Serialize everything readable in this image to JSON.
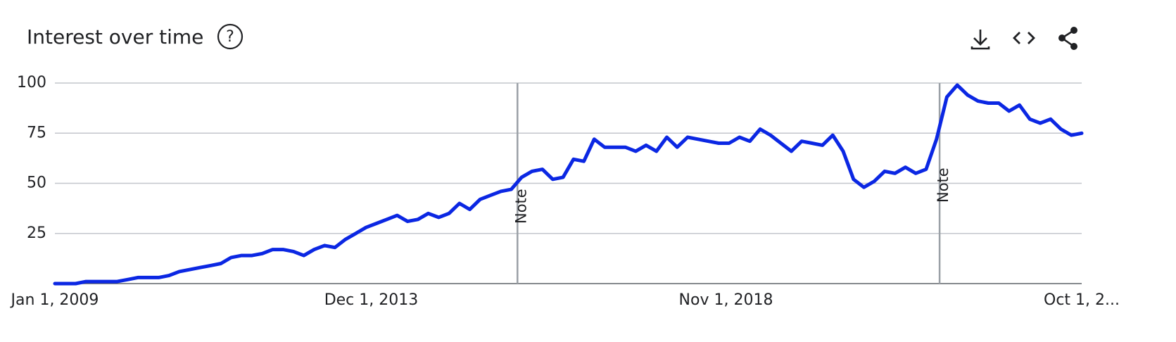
{
  "chart_data": {
    "type": "line",
    "title": "Interest over time",
    "help_icon": "?",
    "color": "#0b27e3",
    "values": [
      0,
      0,
      0,
      1,
      1,
      1,
      1,
      2,
      3,
      3,
      3,
      4,
      6,
      7,
      8,
      9,
      10,
      13,
      14,
      14,
      15,
      17,
      17,
      16,
      14,
      17,
      19,
      18,
      22,
      25,
      28,
      30,
      32,
      34,
      31,
      32,
      35,
      33,
      35,
      40,
      37,
      42,
      44,
      46,
      47,
      53,
      56,
      57,
      52,
      53,
      62,
      61,
      72,
      68,
      68,
      68,
      66,
      69,
      66,
      73,
      68,
      73,
      72,
      71,
      70,
      70,
      73,
      71,
      77,
      74,
      70,
      66,
      71,
      70,
      69,
      74,
      66,
      52,
      48,
      51,
      56,
      55,
      58,
      55,
      57,
      72,
      93,
      99,
      94,
      91,
      90,
      90,
      86,
      89,
      82,
      80,
      82,
      77,
      74,
      75
    ],
    "xlim": [
      0,
      99
    ],
    "xticks": [
      {
        "value": 0,
        "label": "Jan 1, 2009"
      },
      {
        "value": 30.5,
        "label": "Dec 1, 2013"
      },
      {
        "value": 64.7,
        "label": "Nov 1, 2018"
      },
      {
        "value": 99,
        "label": "Oct 1, 2..."
      }
    ],
    "ylim": [
      0,
      100
    ],
    "yticks": [
      25,
      50,
      75,
      100
    ],
    "grid": true,
    "annotations": [
      {
        "x": 44.6,
        "text": "Note"
      },
      {
        "x": 85.3,
        "text": "Note"
      }
    ]
  }
}
